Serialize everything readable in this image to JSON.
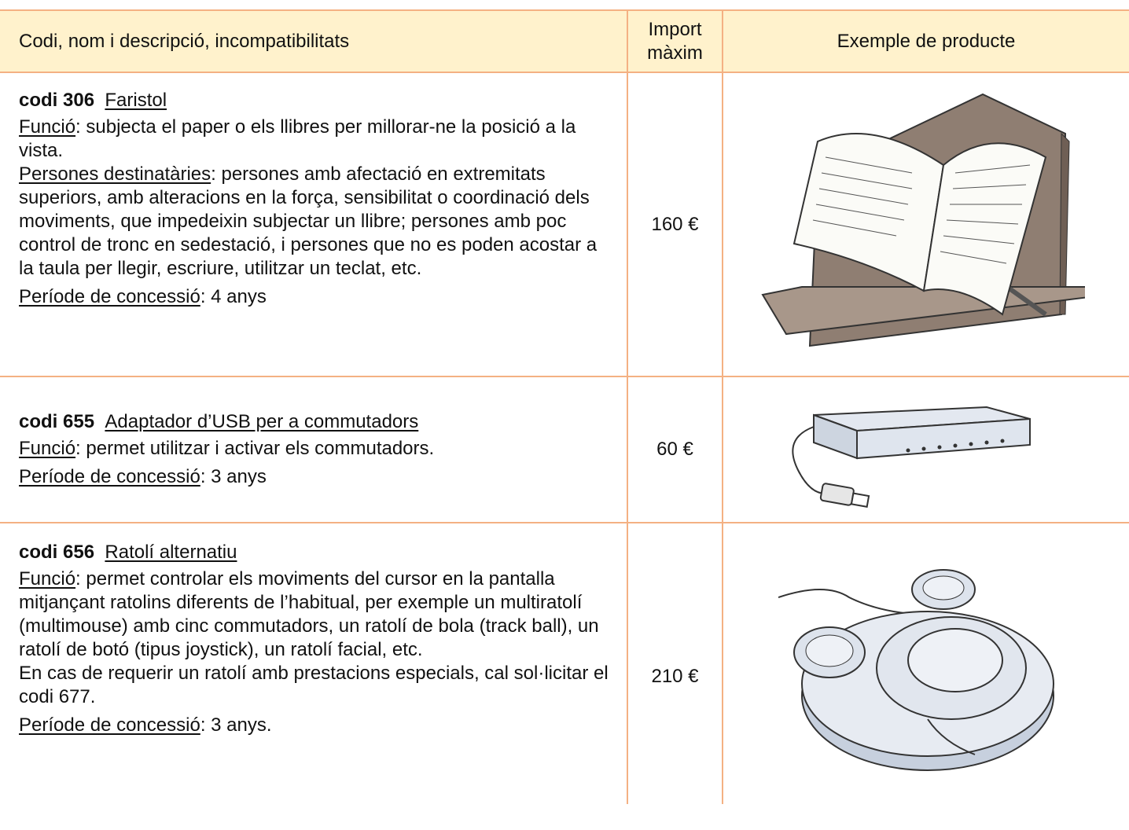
{
  "table": {
    "header": [
      "Codi, nom i descripció, incompatibilitats",
      "Import màxim",
      "Exemple de producte"
    ],
    "rows": [
      {
        "code": "codi 306",
        "name": "Faristol",
        "paragraphs": [
          {
            "label": "Funció",
            "text": ": subjecta el paper o els llibres per millorar-ne la posició a la vista."
          },
          {
            "label": "Persones destinatàries",
            "text": ": persones amb afectació en extremitats superiors, amb alteracions en la força, sensibilitat o coordinació dels moviments, que impedeixin subjectar un llibre; persones amb poc control de tronc en sedestació, i persones que no es poden acostar a la taula per llegir, escriure, utilitzar un teclat, etc."
          }
        ],
        "period": {
          "label": "Període de concessió",
          "text": ": 4 anys"
        },
        "amount": "160 €"
      },
      {
        "code": "codi 655",
        "name": "Adaptador d’USB per a commutadors",
        "paragraphs": [
          {
            "label": "Funció",
            "text": ": permet utilitzar i activar els commutadors."
          }
        ],
        "period": {
          "label": "Període de concessió",
          "text": ": 3 anys"
        },
        "amount": "60 €"
      },
      {
        "code": "codi 656",
        "name": "Ratolí alternatiu",
        "paragraphs": [
          {
            "label": "Funció",
            "text": ": permet controlar els moviments del cursor en la pantalla mitjançant ratolins diferents de l’habitual, per exemple un multiratolí (multimouse) amb cinc commutadors, un ratolí de bola (track ball), un ratolí de botó (tipus joystick), un ratolí facial, etc."
          },
          {
            "text": "En cas de requerir un ratolí amb prestacions especials, cal sol·licitar el codi 677."
          }
        ],
        "period": {
          "label": "Període de concessió",
          "text": ": 3 anys."
        },
        "amount": "210 €"
      }
    ]
  }
}
